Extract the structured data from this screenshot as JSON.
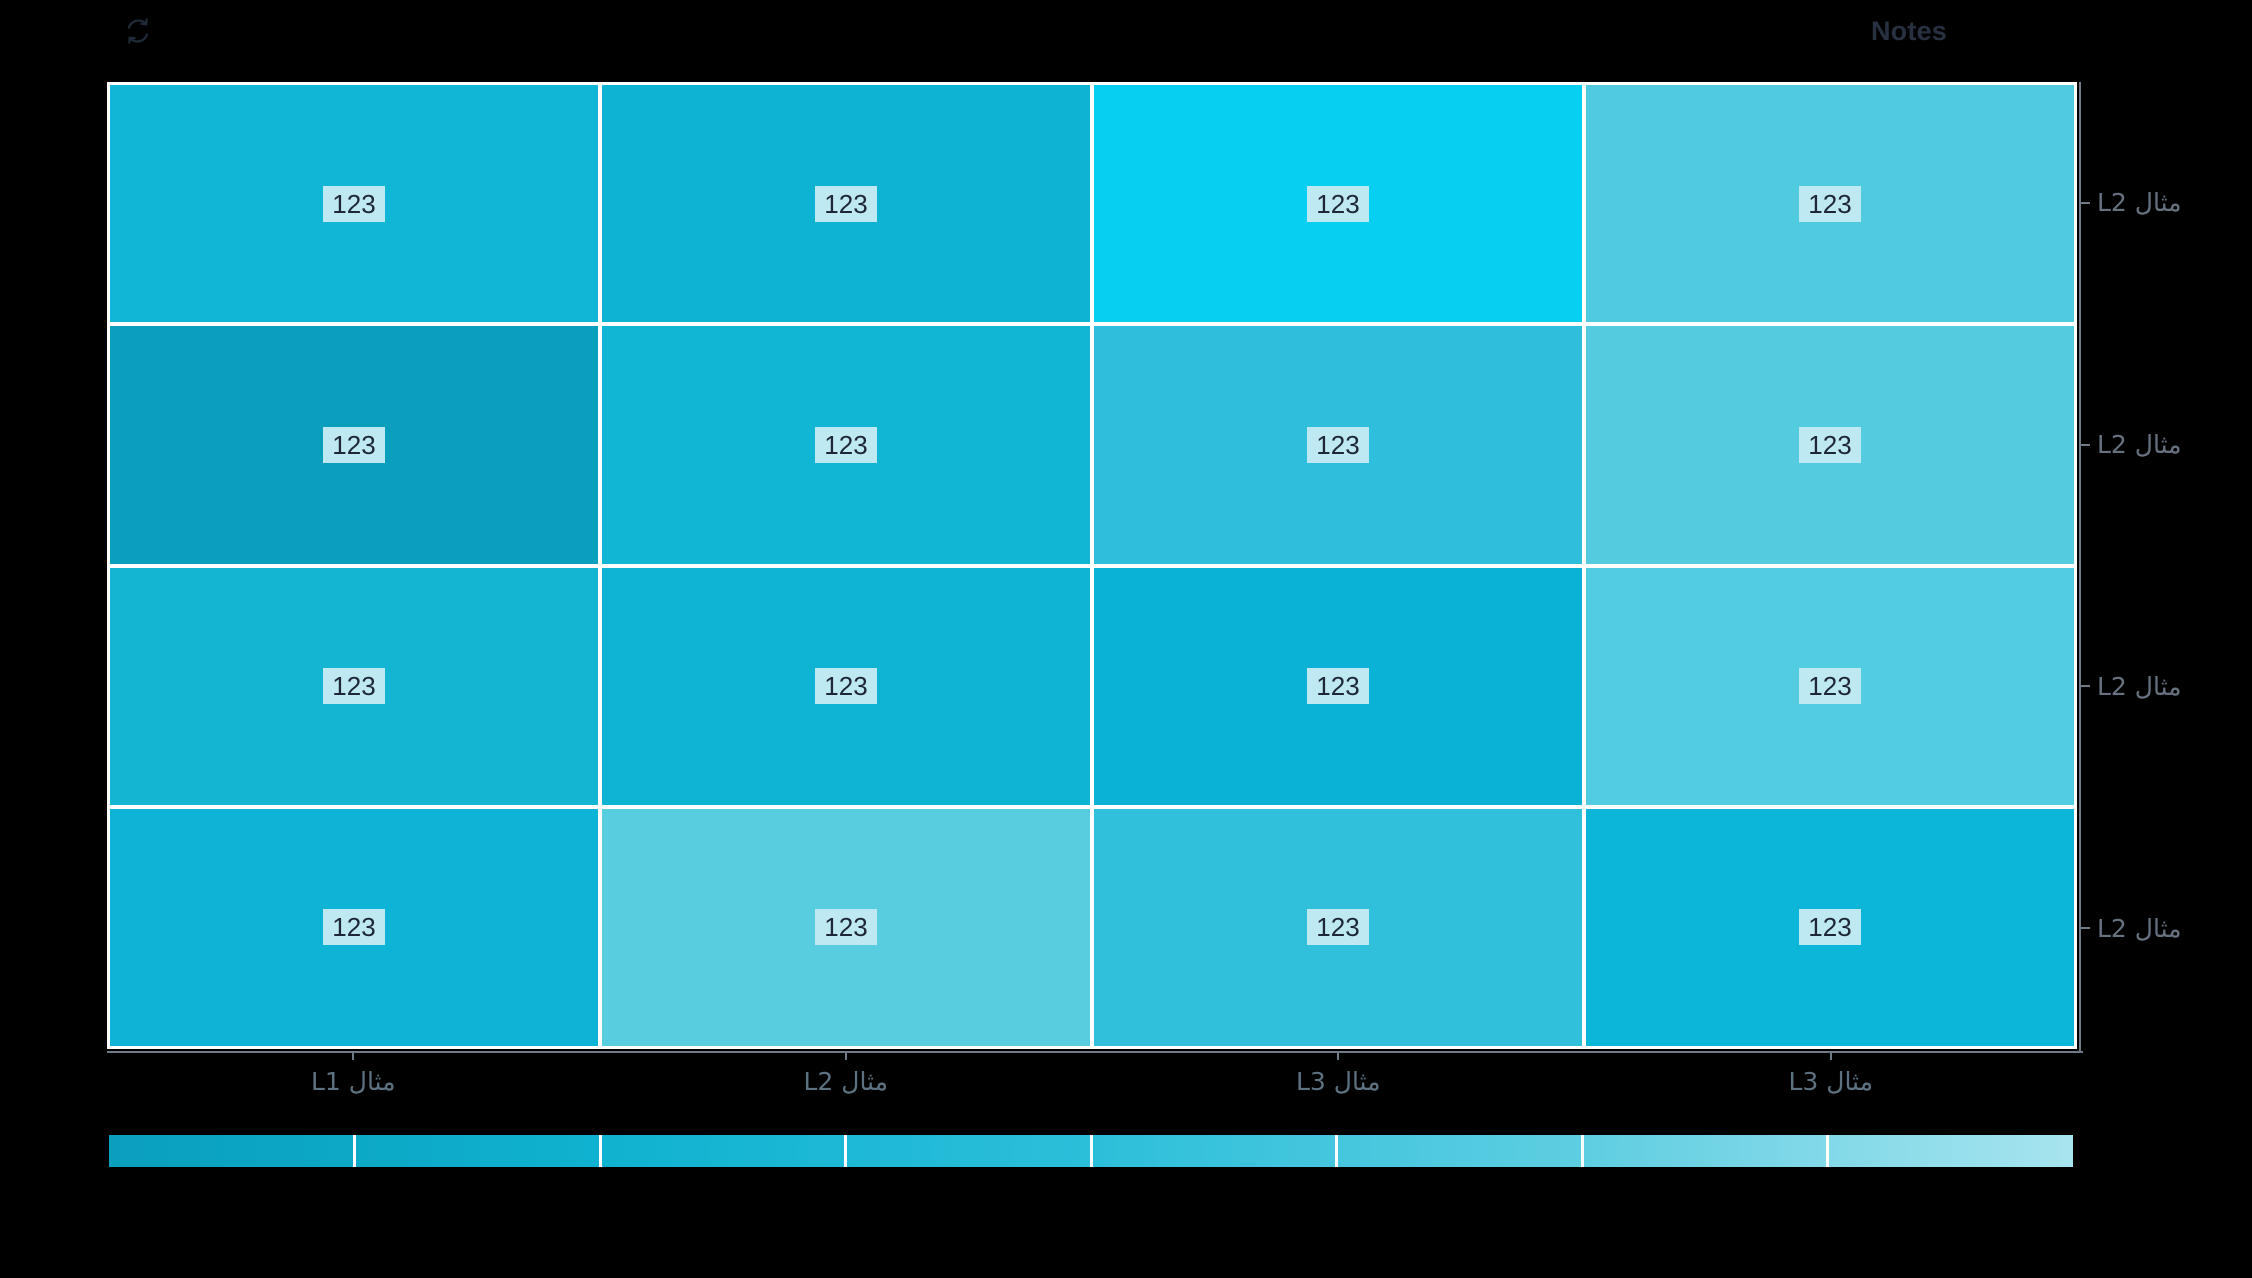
{
  "header": {
    "refresh_icon": "sync-icon",
    "notes_label": "Notes"
  },
  "colors": {
    "background": "#000000",
    "plot_border": "#ffffff",
    "axis_line": "#6f7a86",
    "x_tick_label": "#5d7280",
    "y_tick_label": "#67717f",
    "header_text": "#27313f",
    "icon": "#1f2b38",
    "cell_label_bg": "#bee8f2",
    "cell_label_text": "#1d2737"
  },
  "chart_data": {
    "type": "heatmap",
    "title": "",
    "x_categories": [
      "مثال L1",
      "مثال L2",
      "مثال L3",
      "مثال L3"
    ],
    "y_categories": [
      "مثال L2",
      "مثال L2",
      "مثال L2",
      "مثال L2"
    ],
    "grid_lines": "white",
    "legend_position": "bottom",
    "cells": [
      [
        {
          "value": "123",
          "color": "#0FB6D6"
        },
        {
          "value": "123",
          "color": "#0DB3D3"
        },
        {
          "value": "123",
          "color": "#06CFF2"
        },
        {
          "value": "123",
          "color": "#4FCADE"
        }
      ],
      [
        {
          "value": "123",
          "color": "#0AA0BD"
        },
        {
          "value": "123",
          "color": "#11B6D4"
        },
        {
          "value": "123",
          "color": "#2FBEDB"
        },
        {
          "value": "123",
          "color": "#55CBDF"
        }
      ],
      [
        {
          "value": "123",
          "color": "#14B5D3"
        },
        {
          "value": "123",
          "color": "#0FB4D4"
        },
        {
          "value": "123",
          "color": "#0AB2D5"
        },
        {
          "value": "123",
          "color": "#52CCE0"
        }
      ],
      [
        {
          "value": "123",
          "color": "#0EB4D5"
        },
        {
          "value": "123",
          "color": "#58CDE0"
        },
        {
          "value": "123",
          "color": "#30C0DC"
        },
        {
          "value": "123",
          "color": "#0BB6D8"
        }
      ]
    ],
    "colorbar": {
      "segments": 8,
      "gradient_stops": [
        "#0A9FBD",
        "#0FB2D0",
        "#2CBFDA",
        "#5ECEE1",
        "#A7E4EF"
      ]
    }
  }
}
